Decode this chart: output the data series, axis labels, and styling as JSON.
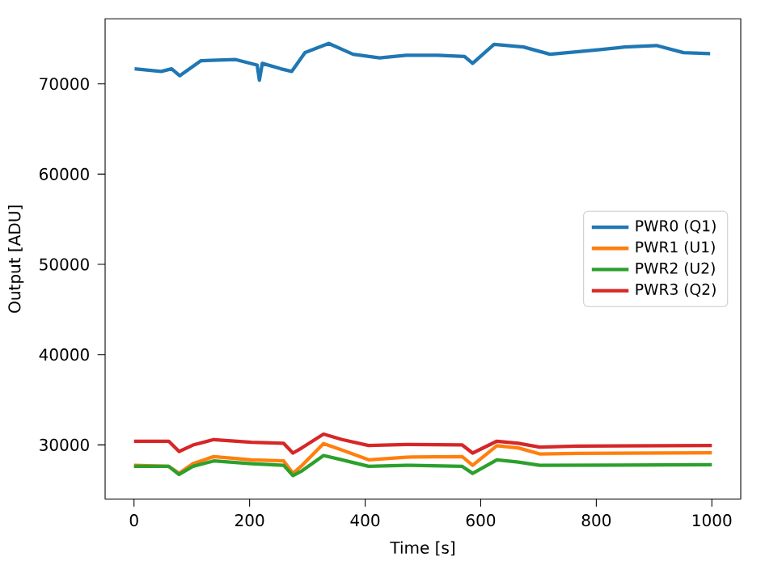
{
  "chart_data": {
    "type": "line",
    "xlabel": "Time [s]",
    "ylabel": "Output [ADU]",
    "xlim": [
      -50,
      1050
    ],
    "ylim": [
      24000,
      77200
    ],
    "xticks": [
      0,
      200,
      400,
      600,
      800,
      1000
    ],
    "yticks": [
      30000,
      40000,
      50000,
      60000,
      70000
    ],
    "legend": "right",
    "grid": false,
    "marker": "none",
    "line_style": "solid",
    "series": [
      {
        "name": "PWR0 (Q1)",
        "color": "#1f77b4",
        "x": [
          1,
          47,
          65,
          79,
          116,
          176,
          213,
          217,
          222,
          254,
          273,
          296,
          337,
          379,
          425,
          471,
          526,
          572,
          586,
          623,
          674,
          720,
          803,
          849,
          904,
          951,
          997
        ],
        "values": [
          71670,
          71380,
          71670,
          70900,
          72570,
          72690,
          72080,
          70400,
          72270,
          71670,
          71380,
          73460,
          74480,
          73280,
          72870,
          73160,
          73160,
          73040,
          72270,
          74370,
          74080,
          73280,
          73760,
          74080,
          74250,
          73460,
          73340
        ]
      },
      {
        "name": "PWR1 (U1)",
        "color": "#ff7f0e",
        "x": [
          0,
          60,
          78,
          102,
          138,
          203,
          259,
          275,
          291,
          328,
          360,
          406,
          471,
          568,
          586,
          628,
          665,
          702,
          766,
          1000
        ],
        "values": [
          27740,
          27620,
          26840,
          27920,
          28700,
          28340,
          28220,
          26840,
          27740,
          30140,
          29420,
          28340,
          28640,
          28700,
          27740,
          29900,
          29660,
          29000,
          29060,
          29120
        ]
      },
      {
        "name": "PWR2 (U2)",
        "color": "#2ca02c",
        "x": [
          0,
          60,
          78,
          102,
          138,
          203,
          259,
          275,
          291,
          328,
          360,
          406,
          471,
          568,
          586,
          628,
          665,
          702,
          1000
        ],
        "values": [
          27620,
          27620,
          26720,
          27620,
          28220,
          27920,
          27740,
          26600,
          27140,
          28820,
          28340,
          27620,
          27740,
          27620,
          26840,
          28340,
          28100,
          27740,
          27800
        ]
      },
      {
        "name": "PWR3 (Q2)",
        "color": "#d62728",
        "x": [
          0,
          60,
          78,
          102,
          138,
          203,
          259,
          275,
          291,
          328,
          360,
          406,
          471,
          568,
          586,
          628,
          665,
          702,
          766,
          1000
        ],
        "values": [
          30410,
          30410,
          29270,
          29980,
          30590,
          30290,
          30170,
          29090,
          29690,
          31190,
          30590,
          29930,
          30050,
          29990,
          29090,
          30410,
          30170,
          29750,
          29870,
          29930
        ]
      }
    ]
  }
}
